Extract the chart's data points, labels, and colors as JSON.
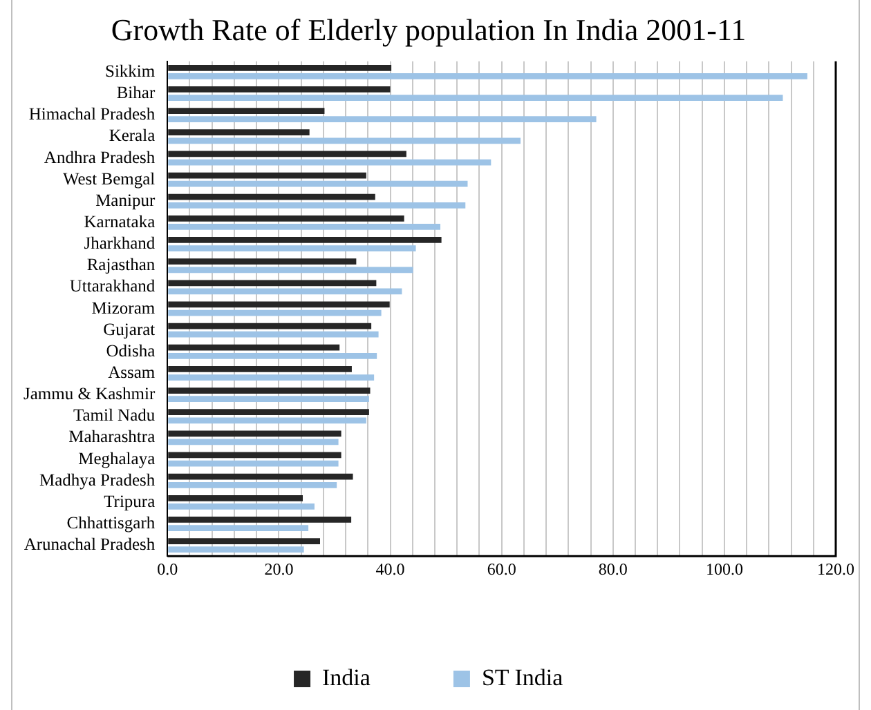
{
  "chart_data": {
    "type": "bar",
    "orientation": "horizontal",
    "title": "Growth Rate of Elderly population In India 2001-11",
    "categories": [
      "Sikkim",
      "Bihar",
      "Himachal Pradesh",
      "Kerala",
      "Andhra Pradesh",
      "West Bemgal",
      "Manipur",
      "Karnataka",
      "Jharkhand",
      "Rajasthan",
      "Uttarakhand",
      "Mizoram",
      "Gujarat",
      "Odisha",
      "Assam",
      "Jammu & Kashmir",
      "Tamil Nadu",
      "Maharashtra",
      "Meghalaya",
      "Madhya Pradesh",
      "Tripura",
      "Chhattisgarh",
      "Arunachal Pradesh"
    ],
    "series": [
      {
        "name": "India",
        "color": "#262626",
        "values": [
          40.2,
          40.0,
          28.2,
          25.5,
          42.9,
          35.7,
          37.3,
          42.5,
          49.2,
          33.9,
          37.5,
          39.9,
          36.6,
          30.9,
          33.1,
          36.4,
          36.2,
          31.2,
          31.2,
          33.3,
          24.3,
          33.0,
          27.4
        ]
      },
      {
        "name": "ST India",
        "color": "#9dc3e6",
        "values": [
          114.9,
          110.5,
          77.0,
          63.4,
          58.1,
          53.9,
          53.5,
          49.0,
          44.6,
          44.1,
          42.1,
          38.4,
          37.9,
          37.6,
          37.1,
          36.2,
          35.7,
          30.7,
          30.7,
          30.4,
          26.4,
          25.3,
          24.5
        ]
      }
    ],
    "xlim": [
      0,
      120
    ],
    "xticks": [
      {
        "value": 0,
        "label": "0.0"
      },
      {
        "value": 4,
        "label": null
      },
      {
        "value": 8,
        "label": null
      },
      {
        "value": 12,
        "label": null
      },
      {
        "value": 16,
        "label": null
      },
      {
        "value": 20,
        "label": "20.0"
      },
      {
        "value": 24,
        "label": null
      },
      {
        "value": 28,
        "label": null
      },
      {
        "value": 32,
        "label": null
      },
      {
        "value": 36,
        "label": null
      },
      {
        "value": 40,
        "label": "40.0"
      },
      {
        "value": 44,
        "label": null
      },
      {
        "value": 48,
        "label": null
      },
      {
        "value": 52,
        "label": null
      },
      {
        "value": 56,
        "label": null
      },
      {
        "value": 60,
        "label": "60.0"
      },
      {
        "value": 64,
        "label": null
      },
      {
        "value": 68,
        "label": null
      },
      {
        "value": 72,
        "label": null
      },
      {
        "value": 76,
        "label": null
      },
      {
        "value": 80,
        "label": "80.0"
      },
      {
        "value": 84,
        "label": null
      },
      {
        "value": 88,
        "label": null
      },
      {
        "value": 92,
        "label": null
      },
      {
        "value": 96,
        "label": null
      },
      {
        "value": 100,
        "label": "100.0"
      },
      {
        "value": 104,
        "label": null
      },
      {
        "value": 108,
        "label": null
      },
      {
        "value": 112,
        "label": null
      },
      {
        "value": 116,
        "label": null
      },
      {
        "value": 120,
        "label": "120.0"
      }
    ],
    "grid": "x",
    "legend": "bottom"
  }
}
